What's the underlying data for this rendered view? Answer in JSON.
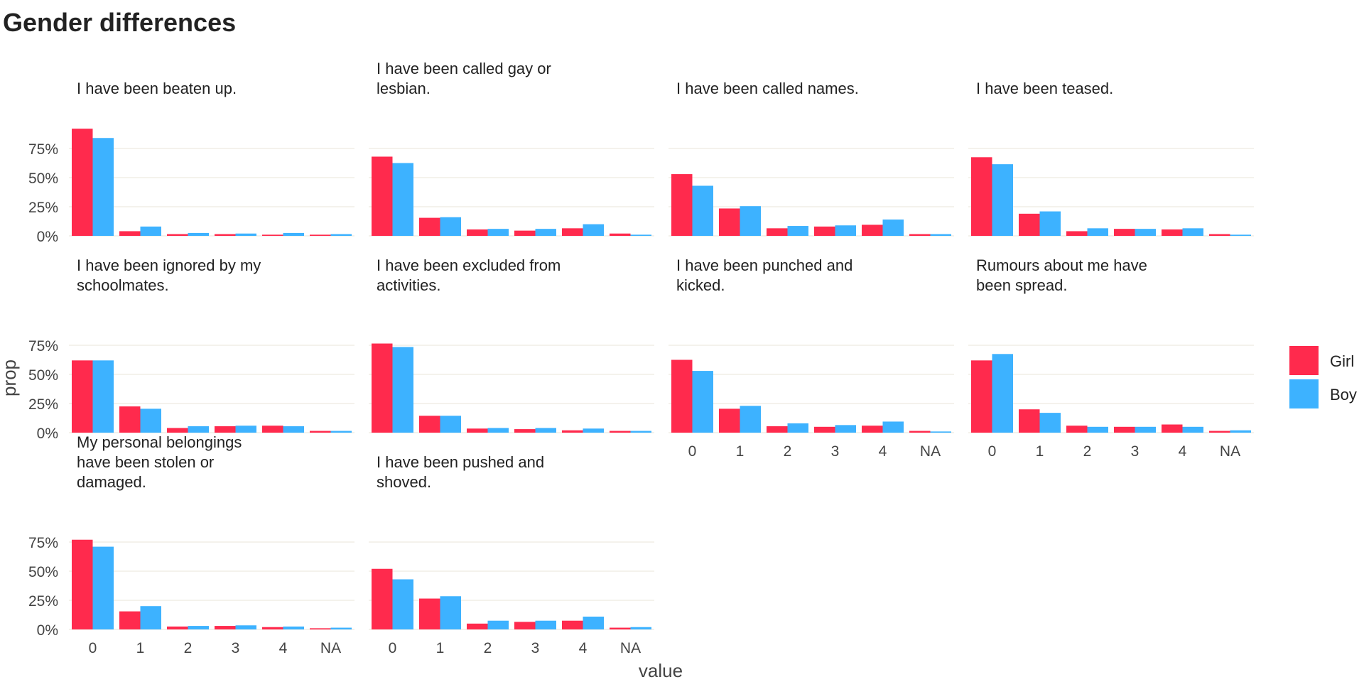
{
  "chart_data": {
    "type": "bar",
    "title": "Gender differences",
    "xlabel": "value",
    "ylabel": "prop",
    "categories": [
      "0",
      "1",
      "2",
      "3",
      "4",
      "NA"
    ],
    "y_ticks": [
      "0%",
      "25%",
      "50%",
      "75%"
    ],
    "ylim": [
      0,
      0.95
    ],
    "legend": {
      "position": "right",
      "entries": [
        {
          "name": "Girl",
          "color": "#ff2a4d"
        },
        {
          "name": "Boy",
          "color": "#3db2ff"
        }
      ]
    },
    "facets": [
      {
        "title": [
          "I have been beaten up."
        ],
        "series": [
          {
            "name": "Girl",
            "values": [
              0.92,
              0.04,
              0.015,
              0.015,
              0.01,
              0.01
            ]
          },
          {
            "name": "Boy",
            "values": [
              0.84,
              0.08,
              0.025,
              0.02,
              0.025,
              0.015
            ]
          }
        ]
      },
      {
        "title": [
          "I have been called gay or",
          "lesbian."
        ],
        "series": [
          {
            "name": "Girl",
            "values": [
              0.68,
              0.155,
              0.055,
              0.045,
              0.065,
              0.02
            ]
          },
          {
            "name": "Boy",
            "values": [
              0.625,
              0.16,
              0.06,
              0.06,
              0.1,
              0.01
            ]
          }
        ]
      },
      {
        "title": [
          "I have been called names."
        ],
        "series": [
          {
            "name": "Girl",
            "values": [
              0.53,
              0.235,
              0.065,
              0.08,
              0.095,
              0.015
            ]
          },
          {
            "name": "Boy",
            "values": [
              0.43,
              0.255,
              0.085,
              0.09,
              0.14,
              0.015
            ]
          }
        ]
      },
      {
        "title": [
          "I have been teased."
        ],
        "series": [
          {
            "name": "Girl",
            "values": [
              0.675,
              0.19,
              0.04,
              0.06,
              0.055,
              0.015
            ]
          },
          {
            "name": "Boy",
            "values": [
              0.615,
              0.21,
              0.065,
              0.06,
              0.065,
              0.01
            ]
          }
        ]
      },
      {
        "title": [
          "I have been ignored by my",
          "schoolmates."
        ],
        "series": [
          {
            "name": "Girl",
            "values": [
              0.62,
              0.225,
              0.04,
              0.055,
              0.06,
              0.015
            ]
          },
          {
            "name": "Boy",
            "values": [
              0.62,
              0.205,
              0.055,
              0.06,
              0.055,
              0.015
            ]
          }
        ]
      },
      {
        "title": [
          "I have been excluded from",
          "activities."
        ],
        "series": [
          {
            "name": "Girl",
            "values": [
              0.765,
              0.145,
              0.035,
              0.03,
              0.02,
              0.015
            ]
          },
          {
            "name": "Boy",
            "values": [
              0.735,
              0.145,
              0.04,
              0.04,
              0.035,
              0.015
            ]
          }
        ]
      },
      {
        "title": [
          "I have been punched and",
          "kicked."
        ],
        "series": [
          {
            "name": "Girl",
            "values": [
              0.625,
              0.205,
              0.055,
              0.05,
              0.06,
              0.015
            ]
          },
          {
            "name": "Boy",
            "values": [
              0.53,
              0.23,
              0.08,
              0.065,
              0.095,
              0.01
            ]
          }
        ]
      },
      {
        "title": [
          "Rumours about me have",
          "been spread."
        ],
        "series": [
          {
            "name": "Girl",
            "values": [
              0.62,
              0.2,
              0.06,
              0.05,
              0.07,
              0.015
            ]
          },
          {
            "name": "Boy",
            "values": [
              0.675,
              0.17,
              0.05,
              0.05,
              0.05,
              0.02
            ]
          }
        ]
      },
      {
        "title": [
          "My personal belongings",
          "have been stolen or",
          "damaged."
        ],
        "series": [
          {
            "name": "Girl",
            "values": [
              0.77,
              0.155,
              0.025,
              0.03,
              0.02,
              0.01
            ]
          },
          {
            "name": "Boy",
            "values": [
              0.71,
              0.2,
              0.03,
              0.035,
              0.025,
              0.015
            ]
          }
        ]
      },
      {
        "title": [
          "I have been pushed and",
          "shoved."
        ],
        "series": [
          {
            "name": "Girl",
            "values": [
              0.52,
              0.265,
              0.05,
              0.065,
              0.075,
              0.015
            ]
          },
          {
            "name": "Boy",
            "values": [
              0.43,
              0.285,
              0.075,
              0.075,
              0.11,
              0.02
            ]
          }
        ]
      }
    ]
  }
}
